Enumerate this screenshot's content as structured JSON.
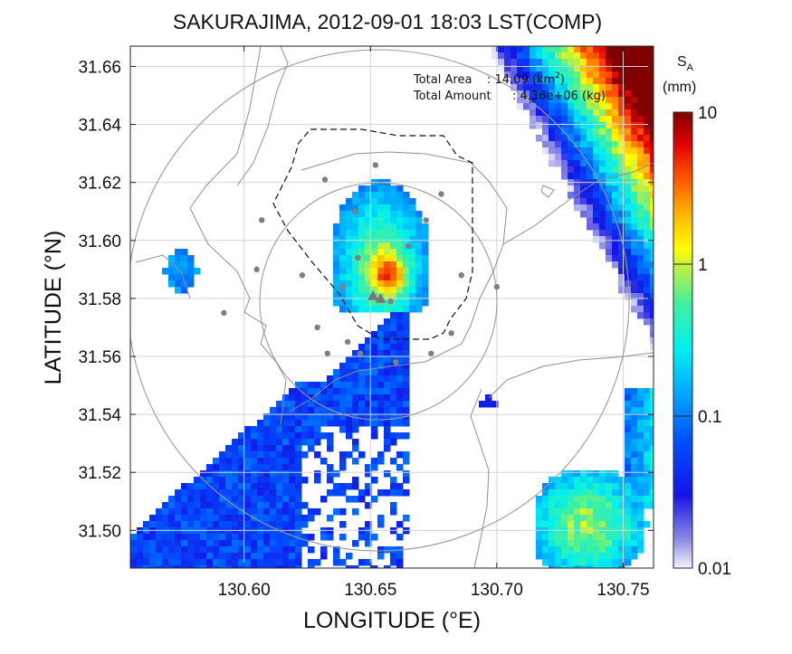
{
  "chart_data": {
    "type": "heatmap",
    "title": "SAKURAJIMA, 2012-09-01 18:03 LST(COMP)",
    "xlabel": "LONGITUDE (°E)",
    "ylabel": "LATITUDE (°N)",
    "xlim": [
      130.555,
      130.762
    ],
    "ylim": [
      31.487,
      31.667
    ],
    "xticks": [
      "130.60",
      "130.65",
      "130.70",
      "130.75"
    ],
    "yticks": [
      "31.50",
      "31.52",
      "31.54",
      "31.56",
      "31.58",
      "31.60",
      "31.62",
      "31.64",
      "31.66"
    ],
    "xtick_values": [
      130.6,
      130.65,
      130.7,
      130.75
    ],
    "ytick_values": [
      31.5,
      31.52,
      31.54,
      31.56,
      31.58,
      31.6,
      31.62,
      31.64,
      31.66
    ],
    "grid": true,
    "colorbar": {
      "label_main": "S",
      "label_sub": "A",
      "unit": "(mm)",
      "scale": "log",
      "ticks": [
        "10",
        "1",
        "0.1",
        "0.01"
      ],
      "tick_values": [
        10,
        1,
        0.1,
        0.01
      ]
    },
    "annotations": {
      "area_label": "Total Area",
      "area_value": ": 14.09 (km",
      "area_sup": "2",
      "area_close": ")",
      "amount_label": "Total Amount",
      "amount_value": ": 4.36e+06 (kg)"
    },
    "stations": [
      [
        130.632,
        31.621
      ],
      [
        130.652,
        31.626
      ],
      [
        130.678,
        31.616
      ],
      [
        130.607,
        31.607
      ],
      [
        130.644,
        31.61
      ],
      [
        130.672,
        31.607
      ],
      [
        130.665,
        31.598
      ],
      [
        130.645,
        31.594
      ],
      [
        130.623,
        31.588
      ],
      [
        130.639,
        31.584
      ],
      [
        130.658,
        31.579
      ],
      [
        130.605,
        31.59
      ],
      [
        130.686,
        31.588
      ],
      [
        130.7,
        31.584
      ],
      [
        130.592,
        31.575
      ],
      [
        130.629,
        31.57
      ],
      [
        130.641,
        31.565
      ],
      [
        130.682,
        31.568
      ],
      [
        130.633,
        31.561
      ],
      [
        130.646,
        31.561
      ],
      [
        130.66,
        31.558
      ],
      [
        130.674,
        31.561
      ]
    ],
    "vents": [
      [
        130.651,
        31.581
      ],
      [
        130.654,
        31.58
      ]
    ],
    "precipitation_regions": [
      {
        "center": [
          130.654,
          31.592
        ],
        "peak_mm": 3,
        "extent": "crater plume"
      },
      {
        "center": [
          130.75,
          31.63
        ],
        "peak_mm": 10,
        "extent": "north-east edge"
      },
      {
        "center": [
          130.6,
          31.52
        ],
        "peak_mm": 0.2,
        "extent": "south-west"
      },
      {
        "center": [
          130.738,
          31.5
        ],
        "peak_mm": 2,
        "extent": "south-east"
      }
    ]
  }
}
